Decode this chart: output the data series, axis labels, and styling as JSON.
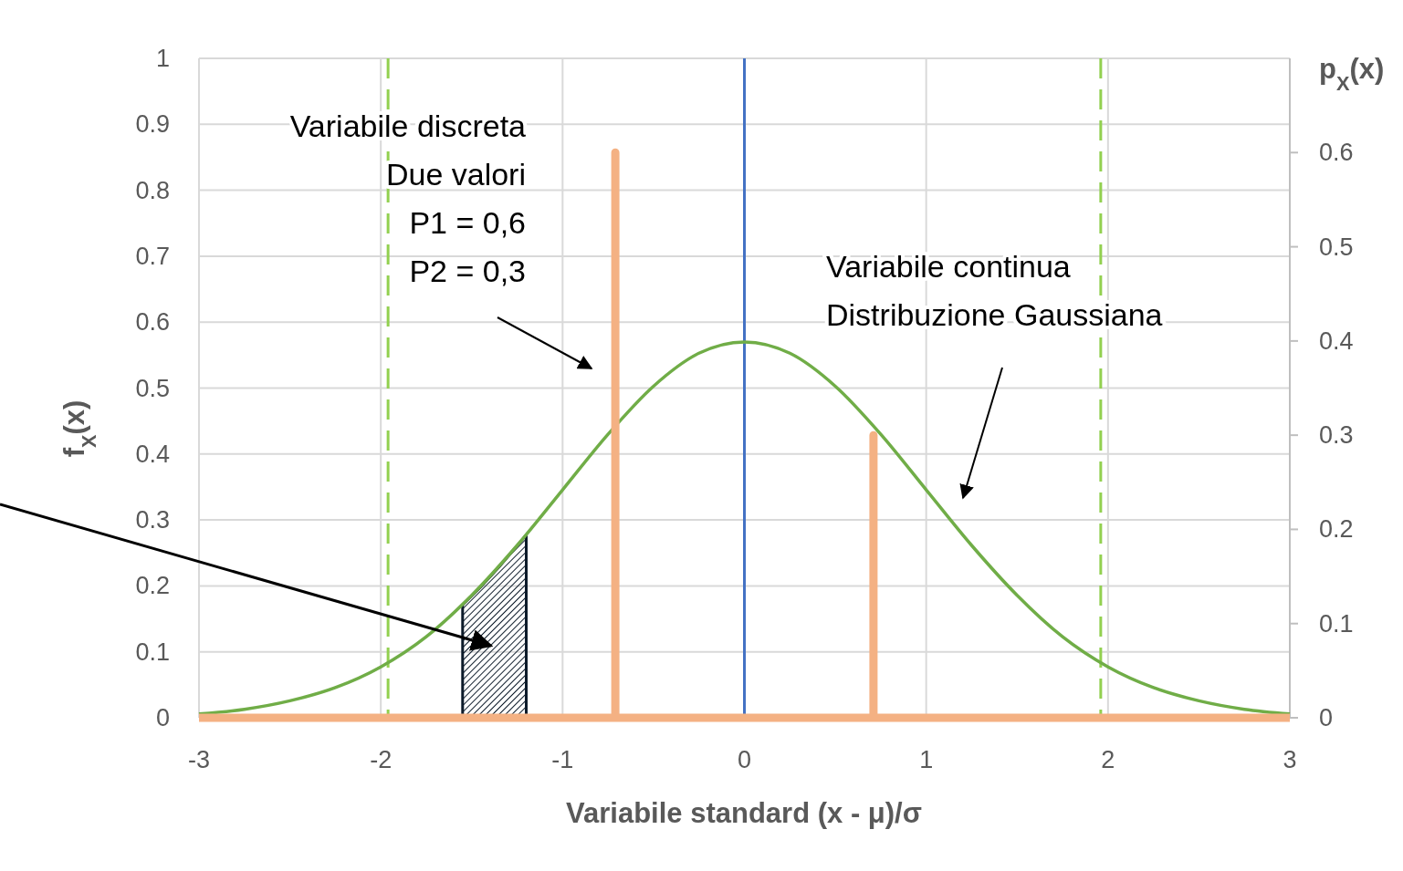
{
  "chart_data": {
    "type": "line",
    "xlabel": "Variabile standard (x - μ)/σ",
    "ylabel": "f$_{X}$(x)",
    "y2label": "p$_{X}$(x)",
    "xlim": [
      -3,
      3
    ],
    "xticks": [
      -3,
      -2,
      -1,
      0,
      1,
      2,
      3
    ],
    "ylim": [
      0,
      1
    ],
    "yticks": [
      0,
      0.1,
      0.2,
      0.3,
      0.4,
      0.5,
      0.6,
      0.7,
      0.8,
      0.9,
      1
    ],
    "y2lim": [
      0,
      0.7
    ],
    "y2ticks": [
      0,
      0.1,
      0.2,
      0.3,
      0.4,
      0.5,
      0.6
    ],
    "grid": true,
    "series": [
      {
        "type": "area",
        "axis": "y2",
        "color": "#0d1b2a",
        "x": [
          -1.55,
          -1.45,
          -1.35,
          -1.2
        ],
        "values": [
          0.12,
          0.139,
          0.16,
          0.194
        ]
      },
      {
        "axis": "y2",
        "color": "#70ad47",
        "x": [
          -3,
          -2.75,
          -2.5,
          -2.25,
          -2,
          -1.75,
          -1.5,
          -1.25,
          -1,
          -0.75,
          -0.5,
          -0.25,
          0,
          0.25,
          0.5,
          0.75,
          1,
          1.25,
          1.5,
          1.75,
          2,
          2.25,
          2.5,
          2.75,
          3
        ],
        "values": [
          0.004,
          0.009,
          0.018,
          0.032,
          0.054,
          0.086,
          0.13,
          0.183,
          0.242,
          0.301,
          0.352,
          0.387,
          0.399,
          0.387,
          0.352,
          0.301,
          0.242,
          0.183,
          0.13,
          0.086,
          0.054,
          0.032,
          0.018,
          0.009,
          0.004
        ]
      },
      {
        "type": "line",
        "axis": "y2",
        "color": "#f4b183",
        "x": [
          -3,
          -0.71,
          -0.71,
          -0.71,
          0.71,
          0.71,
          0.71,
          3
        ],
        "values": [
          0,
          0,
          0.6,
          0,
          0,
          0.3,
          0,
          0
        ]
      }
    ],
    "ref_lines": [
      {
        "axis": "x",
        "value": 0,
        "color": "#4472c4",
        "line_style": "solid"
      },
      {
        "axis": "x",
        "value": -1.96,
        "color": "#92d050",
        "line_style": "dashed"
      },
      {
        "axis": "x",
        "value": 1.96,
        "color": "#92d050",
        "line_style": "dashed"
      }
    ],
    "annotations": [
      "Variabile discreta\nDue valori\nP1 = 0,6\nP2 = 0,3",
      "Variabile continua\nDistribuzione Gaussiana"
    ]
  }
}
